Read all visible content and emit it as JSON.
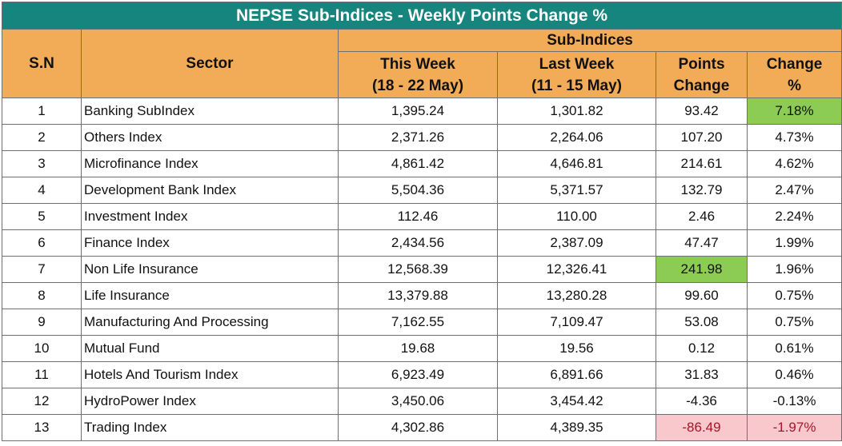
{
  "title": "NEPSE Sub-Indices - Weekly Points Change %",
  "headers": {
    "sn": "S.N",
    "sector": "Sector",
    "group": "Sub-Indices",
    "this_week": "This Week",
    "this_week_range": "(18 - 22 May)",
    "last_week": "Last Week",
    "last_week_range": "(11 - 15 May)",
    "points": "Points",
    "points_2": "Change",
    "change": "Change",
    "change_2": "%"
  },
  "rows": [
    {
      "sn": "1",
      "sector": "Banking SubIndex",
      "this_week": "1,395.24",
      "last_week": "1,301.82",
      "points": "93.42",
      "pct": "7.18%",
      "hl_pct": "green"
    },
    {
      "sn": "2",
      "sector": "Others Index",
      "this_week": "2,371.26",
      "last_week": "2,264.06",
      "points": "107.20",
      "pct": "4.73%"
    },
    {
      "sn": "3",
      "sector": "Microfinance Index",
      "this_week": "4,861.42",
      "last_week": "4,646.81",
      "points": "214.61",
      "pct": "4.62%"
    },
    {
      "sn": "4",
      "sector": "Development Bank Index",
      "this_week": "5,504.36",
      "last_week": "5,371.57",
      "points": "132.79",
      "pct": "2.47%"
    },
    {
      "sn": "5",
      "sector": "Investment Index",
      "this_week": "112.46",
      "last_week": "110.00",
      "points": "2.46",
      "pct": "2.24%"
    },
    {
      "sn": "6",
      "sector": "Finance Index",
      "this_week": "2,434.56",
      "last_week": "2,387.09",
      "points": "47.47",
      "pct": "1.99%"
    },
    {
      "sn": "7",
      "sector": "Non Life Insurance",
      "this_week": "12,568.39",
      "last_week": "12,326.41",
      "points": "241.98",
      "pct": "1.96%",
      "hl_points": "green"
    },
    {
      "sn": "8",
      "sector": "Life Insurance",
      "this_week": "13,379.88",
      "last_week": "13,280.28",
      "points": "99.60",
      "pct": "0.75%"
    },
    {
      "sn": "9",
      "sector": "Manufacturing And Processing",
      "this_week": "7,162.55",
      "last_week": "7,109.47",
      "points": "53.08",
      "pct": "0.75%"
    },
    {
      "sn": "10",
      "sector": "Mutual Fund",
      "this_week": "19.68",
      "last_week": "19.56",
      "points": "0.12",
      "pct": "0.61%"
    },
    {
      "sn": "11",
      "sector": "Hotels And Tourism Index",
      "this_week": "6,923.49",
      "last_week": "6,891.66",
      "points": "31.83",
      "pct": "0.46%"
    },
    {
      "sn": "12",
      "sector": "HydroPower Index",
      "this_week": "3,450.06",
      "last_week": "3,454.42",
      "points": "-4.36",
      "pct": "-0.13%"
    },
    {
      "sn": "13",
      "sector": "Trading Index",
      "this_week": "4,302.86",
      "last_week": "4,389.35",
      "points": "-86.49",
      "pct": "-1.97%",
      "hl_points": "red",
      "hl_pct": "red"
    }
  ],
  "colors": {
    "title_bg": "#15857d",
    "header_bg": "#f2ab57",
    "highlight_max": "#8ccc55",
    "highlight_min": "#f9c8cd"
  },
  "chart_data": {
    "type": "table",
    "columns": [
      "S.N",
      "Sector",
      "This Week (18 - 22 May)",
      "Last Week (11 - 15 May)",
      "Points Change",
      "Change %"
    ],
    "title": "NEPSE Sub-Indices - Weekly Points Change %"
  }
}
